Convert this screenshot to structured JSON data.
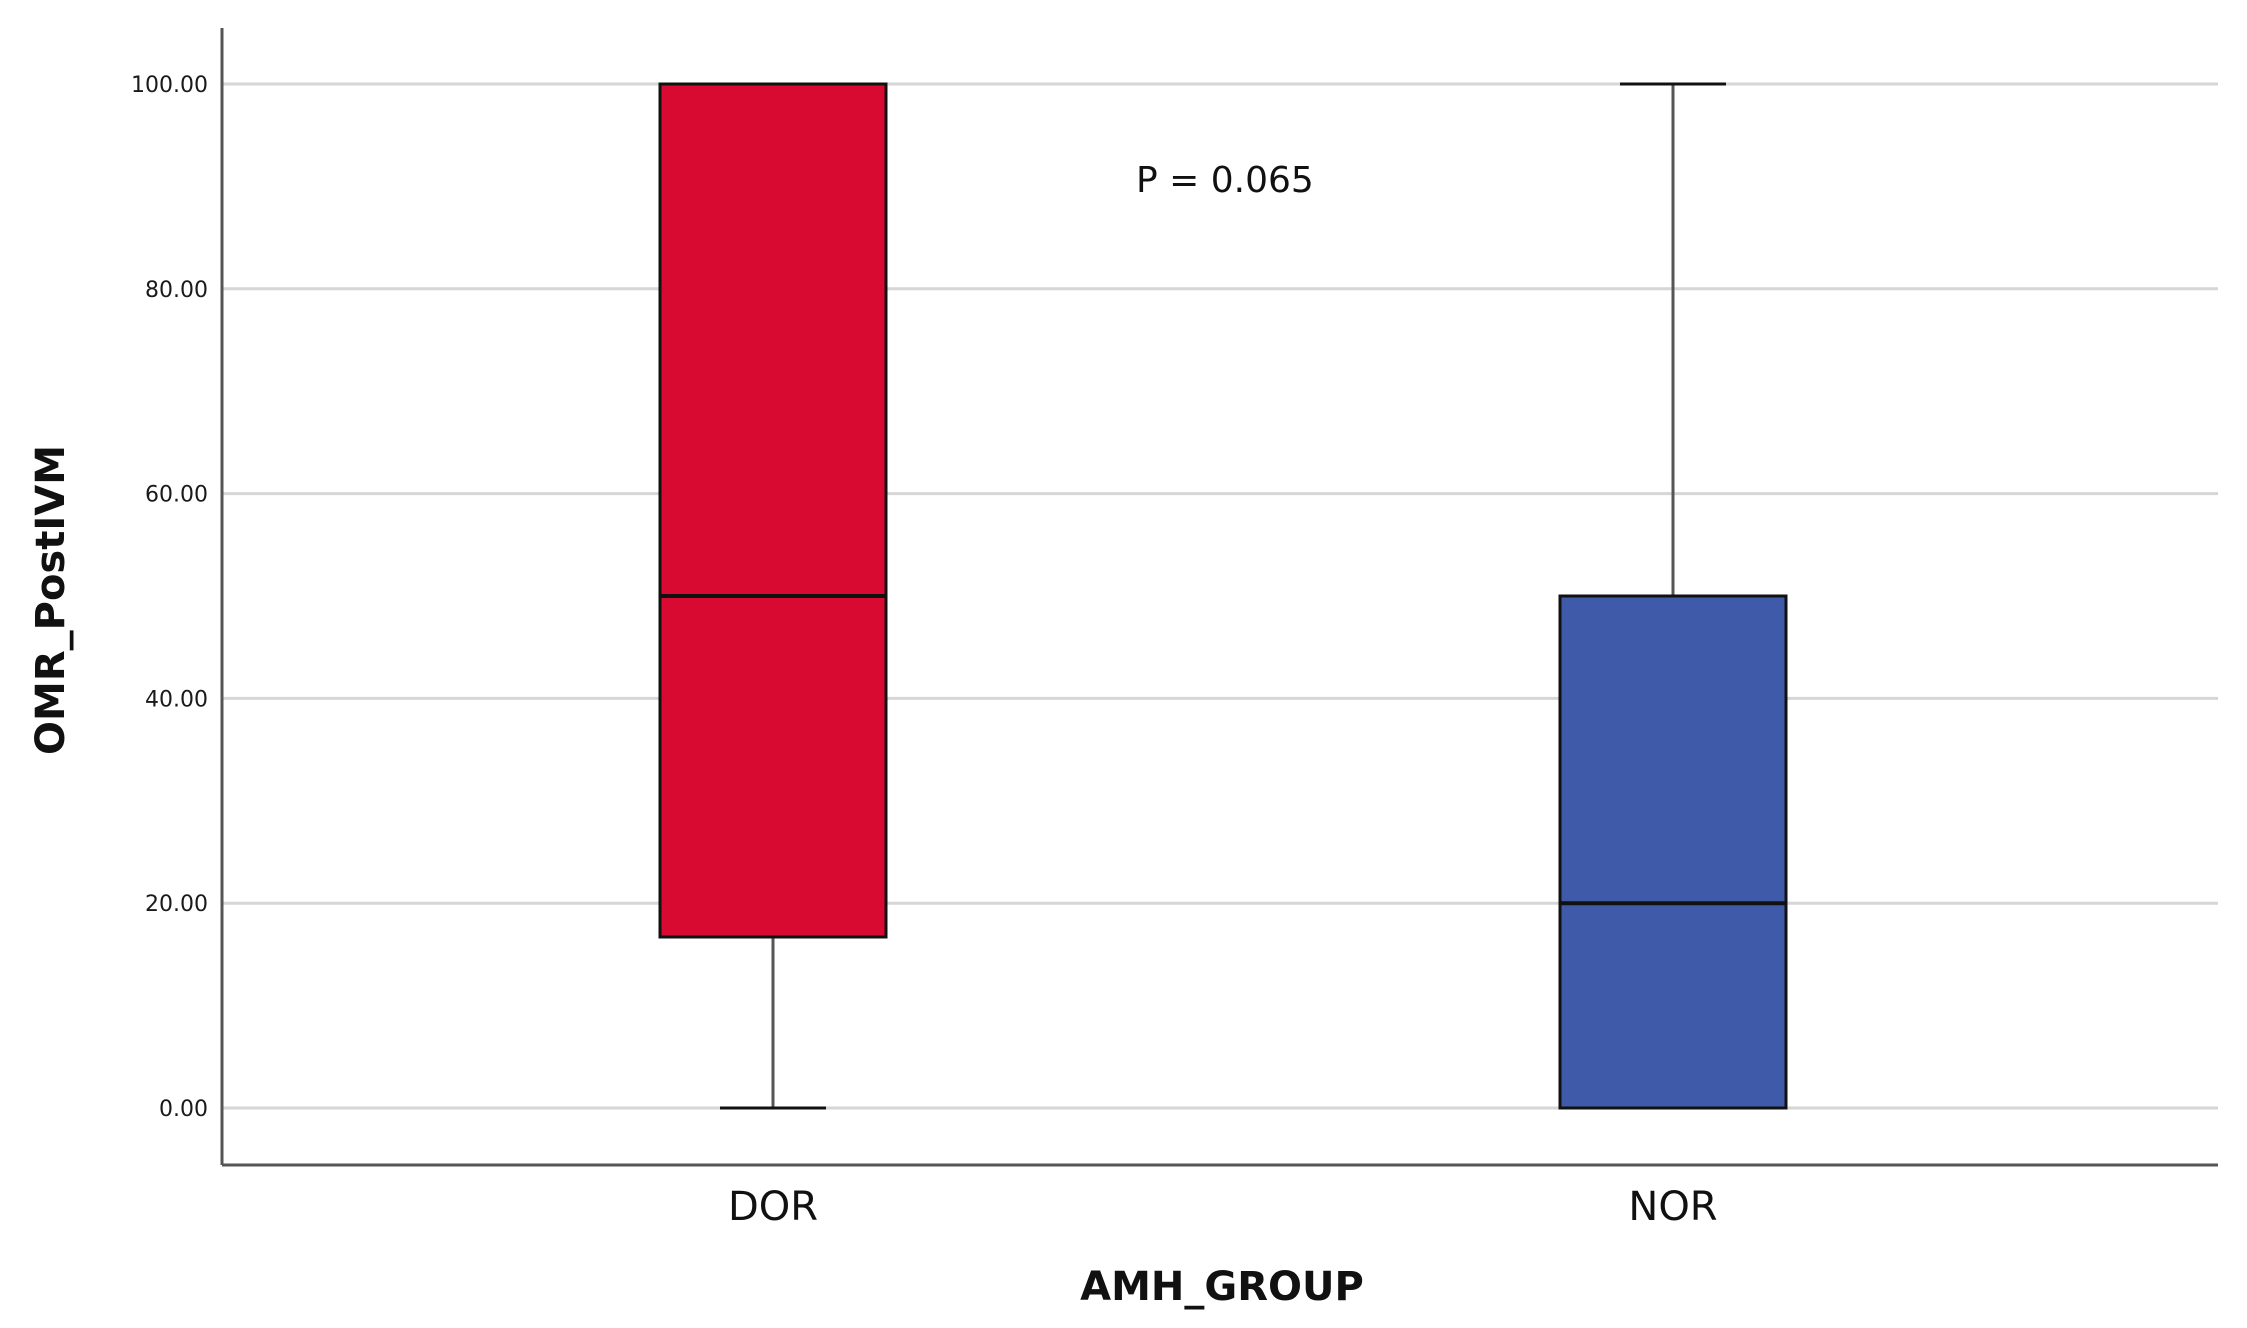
{
  "chart_data": {
    "type": "box",
    "xlabel": "AMH_GROUP",
    "ylabel": "OMR_PostIVM",
    "ylim": [
      0,
      100
    ],
    "y_ticks": [
      "0.00",
      "20.00",
      "40.00",
      "60.00",
      "80.00",
      "100.00"
    ],
    "y_tick_values": [
      0,
      20,
      40,
      60,
      80,
      100
    ],
    "grid": true,
    "categories": [
      "DOR",
      "NOR"
    ],
    "boxes": [
      {
        "category": "DOR",
        "min": 0,
        "q1": 16.7,
        "median": 50,
        "q3": 100,
        "max": 100,
        "color": "#d90a32"
      },
      {
        "category": "NOR",
        "min": 0,
        "q1": 0,
        "median": 20,
        "q3": 50,
        "max": 100,
        "color": "#3f5aa8"
      }
    ],
    "annotation": "P = 0.065"
  }
}
